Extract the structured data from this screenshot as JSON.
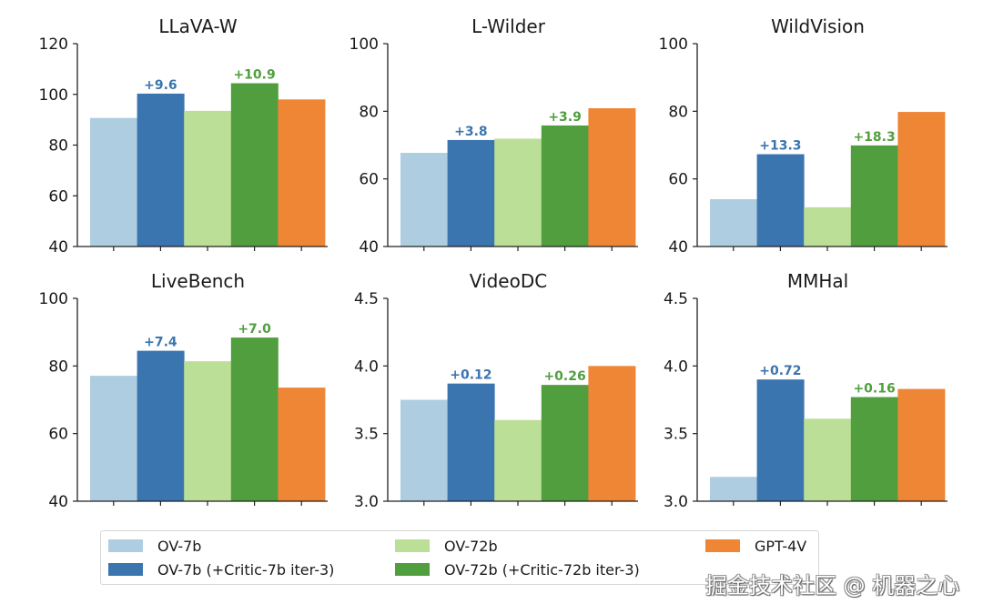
{
  "chart_data": [
    {
      "type": "bar",
      "title": "LLaVA-W",
      "categories": [
        "OV-7b",
        "OV-7b (+Critic-7b iter-3)",
        "OV-72b",
        "OV-72b (+Critic-72b iter-3)",
        "GPT-4V"
      ],
      "values": [
        90.7,
        100.3,
        93.5,
        104.4,
        98.0
      ],
      "ylim": [
        40,
        120
      ],
      "yticks": [
        "40",
        "60",
        "80",
        "100",
        "120"
      ],
      "ytick_values": [
        40,
        60,
        80,
        100,
        120
      ],
      "annotations": [
        {
          "bar": 1,
          "text": "+9.6"
        },
        {
          "bar": 3,
          "text": "+10.9"
        }
      ],
      "xlabel": "",
      "ylabel": "",
      "grid": false
    },
    {
      "type": "bar",
      "title": "L-Wilder",
      "categories": [
        "OV-7b",
        "OV-7b (+Critic-7b iter-3)",
        "OV-72b",
        "OV-72b (+Critic-72b iter-3)",
        "GPT-4V"
      ],
      "values": [
        67.7,
        71.5,
        71.9,
        75.8,
        80.9
      ],
      "ylim": [
        40,
        100
      ],
      "yticks": [
        "40",
        "60",
        "80",
        "100"
      ],
      "ytick_values": [
        40,
        60,
        80,
        100
      ],
      "annotations": [
        {
          "bar": 1,
          "text": "+3.8"
        },
        {
          "bar": 3,
          "text": "+3.9"
        }
      ],
      "xlabel": "",
      "ylabel": "",
      "grid": false
    },
    {
      "type": "bar",
      "title": "WildVision",
      "categories": [
        "OV-7b",
        "OV-7b (+Critic-7b iter-3)",
        "OV-72b",
        "OV-72b (+Critic-72b iter-3)",
        "GPT-4V"
      ],
      "values": [
        54.0,
        67.3,
        51.6,
        69.9,
        79.8
      ],
      "ylim": [
        40,
        100
      ],
      "yticks": [
        "40",
        "60",
        "80",
        "100"
      ],
      "ytick_values": [
        40,
        60,
        80,
        100
      ],
      "annotations": [
        {
          "bar": 1,
          "text": "+13.3"
        },
        {
          "bar": 3,
          "text": "+18.3"
        }
      ],
      "xlabel": "",
      "ylabel": "",
      "grid": false
    },
    {
      "type": "bar",
      "title": "LiveBench",
      "categories": [
        "OV-7b",
        "OV-7b (+Critic-7b iter-3)",
        "OV-72b",
        "OV-72b (+Critic-72b iter-3)",
        "GPT-4V"
      ],
      "values": [
        77.1,
        84.5,
        81.4,
        88.4,
        73.6
      ],
      "ylim": [
        40,
        100
      ],
      "yticks": [
        "40",
        "60",
        "80",
        "100"
      ],
      "ytick_values": [
        40,
        60,
        80,
        100
      ],
      "annotations": [
        {
          "bar": 1,
          "text": "+7.4"
        },
        {
          "bar": 3,
          "text": "+7.0"
        }
      ],
      "xlabel": "",
      "ylabel": "",
      "grid": false
    },
    {
      "type": "bar",
      "title": "VideoDC",
      "categories": [
        "OV-7b",
        "OV-7b (+Critic-7b iter-3)",
        "OV-72b",
        "OV-72b (+Critic-72b iter-3)",
        "GPT-4V"
      ],
      "values": [
        3.75,
        3.87,
        3.6,
        3.86,
        4.0
      ],
      "ylim": [
        3.0,
        4.5
      ],
      "yticks": [
        "3.0",
        "3.5",
        "4.0",
        "4.5"
      ],
      "ytick_values": [
        3.0,
        3.5,
        4.0,
        4.5
      ],
      "annotations": [
        {
          "bar": 1,
          "text": "+0.12"
        },
        {
          "bar": 3,
          "text": "+0.26"
        }
      ],
      "xlabel": "",
      "ylabel": "",
      "grid": false
    },
    {
      "type": "bar",
      "title": "MMHal",
      "categories": [
        "OV-7b",
        "OV-7b (+Critic-7b iter-3)",
        "OV-72b",
        "OV-72b (+Critic-72b iter-3)",
        "GPT-4V"
      ],
      "values": [
        3.18,
        3.9,
        3.61,
        3.77,
        3.83
      ],
      "ylim": [
        3.0,
        4.5
      ],
      "yticks": [
        "3.0",
        "3.5",
        "4.0",
        "4.5"
      ],
      "ytick_values": [
        3.0,
        3.5,
        4.0,
        4.5
      ],
      "annotations": [
        {
          "bar": 1,
          "text": "+0.72"
        },
        {
          "bar": 3,
          "text": "+0.16"
        }
      ],
      "xlabel": "",
      "ylabel": "",
      "grid": false
    }
  ],
  "series_colors": [
    "#aecde1",
    "#3b75af",
    "#bbdf97",
    "#519e3e",
    "#ef8636"
  ],
  "annotation_colors": {
    "1": "#3b75af",
    "3": "#519e3e"
  },
  "legend": {
    "placement": "bottom",
    "entries": [
      {
        "label": "OV-7b",
        "color": "#aecde1"
      },
      {
        "label": "OV-7b (+Critic-7b iter-3)",
        "color": "#3b75af"
      },
      {
        "label": "OV-72b",
        "color": "#bbdf97"
      },
      {
        "label": "OV-72b (+Critic-72b iter-3)",
        "color": "#519e3e"
      },
      {
        "label": "GPT-4V",
        "color": "#ef8636"
      }
    ]
  },
  "watermark": "掘金技术社区 @ 机器之心"
}
